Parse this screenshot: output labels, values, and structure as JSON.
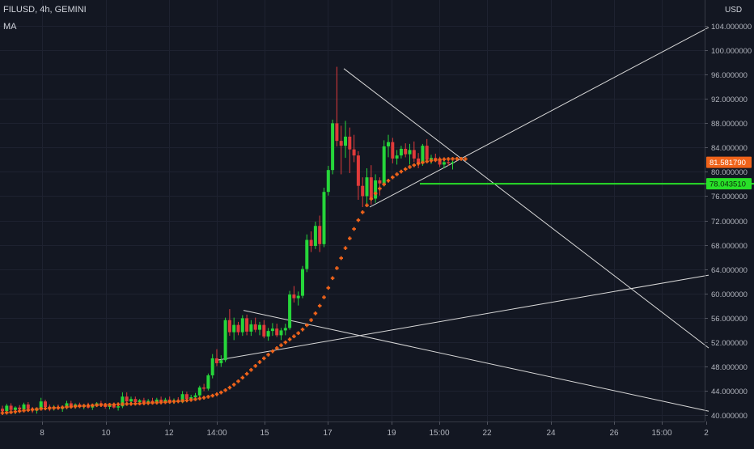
{
  "header": {
    "title": "FILUSD, 4h, GEMINI",
    "indicator": "MA"
  },
  "axis": {
    "currency": "USD"
  },
  "colors": {
    "background": "#131722",
    "up": "#26d63a",
    "down": "#e03a3a",
    "ma": "#f0631a",
    "line": "#d8d8d8",
    "current_price_bg": "#f0631a",
    "level_bg": "#28e028"
  },
  "chart_data": {
    "type": "candlestick",
    "symbol": "FILUSD",
    "interval": "4h",
    "exchange": "GEMINI",
    "y_ticks": [
      40,
      44,
      48,
      52,
      56,
      60,
      64,
      68,
      72,
      76,
      80,
      84,
      88,
      92,
      96,
      100,
      104
    ],
    "y_tick_labels": [
      "40.000000",
      "44.000000",
      "48.000000",
      "52.000000",
      "56.000000",
      "60.000000",
      "64.000000",
      "68.000000",
      "72.000000",
      "76.000000",
      "80.000000",
      "84.000000",
      "88.000000",
      "92.000000",
      "96.000000",
      "100.000000",
      "104.000000"
    ],
    "x_tick_labels": [
      "8",
      "10",
      "12",
      "14:00",
      "15",
      "17",
      "19",
      "15:00",
      "22",
      "24",
      "26",
      "15:00",
      "2"
    ],
    "ylim": [
      38.9,
      106.3
    ],
    "current_price": "81.581790",
    "horizontal_level": "78.043510",
    "series": [
      {
        "name": "FILUSD",
        "kind": "ohlc",
        "ohlc": [
          [
            41.0,
            41.5,
            40.2,
            40.6
          ],
          [
            40.6,
            41.8,
            40.3,
            41.5
          ],
          [
            41.5,
            41.9,
            40.5,
            40.8
          ],
          [
            40.8,
            41.4,
            40.1,
            41.2
          ],
          [
            41.2,
            41.6,
            40.6,
            40.9
          ],
          [
            40.9,
            42.0,
            40.7,
            41.7
          ],
          [
            41.7,
            42.1,
            40.8,
            41.0
          ],
          [
            41.0,
            41.3,
            40.3,
            40.7
          ],
          [
            40.7,
            41.2,
            40.2,
            41.1
          ],
          [
            41.1,
            42.8,
            40.8,
            42.2
          ],
          [
            42.2,
            42.5,
            41.0,
            41.3
          ],
          [
            41.3,
            41.7,
            40.6,
            41.1
          ],
          [
            41.1,
            41.6,
            40.7,
            41.3
          ],
          [
            41.3,
            41.7,
            40.8,
            41.0
          ],
          [
            41.0,
            41.5,
            40.5,
            41.2
          ],
          [
            41.2,
            42.3,
            40.9,
            41.9
          ],
          [
            41.9,
            42.3,
            41.1,
            41.4
          ],
          [
            41.4,
            41.9,
            41.0,
            41.7
          ],
          [
            41.7,
            42.0,
            41.1,
            41.3
          ],
          [
            41.3,
            41.8,
            40.9,
            41.6
          ],
          [
            41.6,
            42.0,
            41.0,
            41.2
          ],
          [
            41.2,
            41.7,
            40.8,
            41.5
          ],
          [
            41.5,
            42.1,
            41.3,
            41.9
          ],
          [
            41.9,
            42.3,
            41.3,
            41.6
          ],
          [
            41.6,
            41.9,
            41.0,
            41.3
          ],
          [
            41.3,
            41.8,
            40.9,
            41.6
          ],
          [
            41.6,
            42.0,
            41.0,
            41.2
          ],
          [
            41.2,
            41.6,
            40.7,
            41.4
          ],
          [
            41.4,
            43.7,
            41.1,
            43.0
          ],
          [
            43.0,
            43.7,
            41.9,
            42.2
          ],
          [
            42.2,
            43.0,
            41.8,
            42.6
          ],
          [
            42.6,
            43.0,
            41.8,
            42.1
          ],
          [
            42.1,
            42.6,
            41.6,
            42.4
          ],
          [
            42.4,
            42.8,
            41.8,
            42.0
          ],
          [
            42.0,
            42.6,
            41.6,
            42.3
          ],
          [
            42.3,
            42.8,
            41.7,
            42.0
          ],
          [
            42.0,
            42.8,
            41.7,
            42.5
          ],
          [
            42.5,
            43.0,
            41.9,
            42.1
          ],
          [
            42.1,
            42.8,
            41.9,
            42.5
          ],
          [
            42.5,
            43.0,
            42.0,
            42.2
          ],
          [
            42.2,
            42.7,
            41.8,
            42.4
          ],
          [
            42.4,
            42.9,
            41.9,
            42.1
          ],
          [
            42.1,
            43.9,
            41.9,
            43.4
          ],
          [
            43.4,
            43.8,
            42.3,
            42.6
          ],
          [
            42.6,
            43.3,
            42.2,
            42.9
          ],
          [
            42.9,
            43.6,
            42.6,
            43.2
          ],
          [
            43.2,
            44.8,
            42.9,
            44.5
          ],
          [
            44.5,
            45.1,
            43.9,
            44.3
          ],
          [
            44.3,
            46.8,
            44.0,
            46.5
          ],
          [
            46.5,
            50.0,
            46.0,
            49.3
          ],
          [
            49.3,
            50.8,
            48.0,
            48.5
          ],
          [
            48.5,
            49.8,
            47.9,
            49.0
          ],
          [
            49.0,
            56.0,
            48.7,
            55.6
          ],
          [
            55.6,
            57.4,
            53.0,
            53.6
          ],
          [
            53.6,
            56.0,
            52.3,
            54.8
          ],
          [
            54.8,
            55.3,
            53.1,
            53.6
          ],
          [
            53.6,
            56.4,
            53.0,
            55.9
          ],
          [
            55.9,
            56.5,
            53.1,
            53.7
          ],
          [
            53.7,
            55.6,
            53.0,
            54.9
          ],
          [
            54.9,
            56.0,
            53.6,
            54.0
          ],
          [
            54.0,
            55.3,
            53.1,
            54.8
          ],
          [
            54.8,
            55.6,
            52.6,
            52.9
          ],
          [
            52.9,
            54.3,
            52.2,
            53.8
          ],
          [
            53.8,
            55.1,
            53.0,
            54.2
          ],
          [
            54.2,
            55.0,
            52.8,
            53.1
          ],
          [
            53.1,
            54.3,
            52.3,
            53.9
          ],
          [
            53.9,
            55.0,
            53.1,
            54.3
          ],
          [
            54.3,
            60.4,
            54.0,
            59.8
          ],
          [
            59.8,
            61.2,
            58.5,
            59.2
          ],
          [
            59.2,
            60.3,
            58.0,
            59.6
          ],
          [
            59.6,
            64.5,
            59.2,
            64.0
          ],
          [
            64.0,
            69.7,
            63.5,
            68.8
          ],
          [
            68.8,
            70.2,
            66.8,
            67.8
          ],
          [
            67.8,
            71.8,
            67.3,
            71.1
          ],
          [
            71.1,
            72.8,
            66.8,
            68.1
          ],
          [
            68.1,
            77.4,
            67.6,
            76.7
          ],
          [
            76.7,
            81.0,
            76.1,
            80.3
          ],
          [
            80.3,
            88.6,
            79.6,
            88.0
          ],
          [
            88.0,
            97.3,
            84.2,
            85.1
          ],
          [
            85.1,
            87.6,
            79.6,
            84.3
          ],
          [
            84.3,
            88.4,
            82.3,
            85.8
          ],
          [
            85.8,
            87.3,
            79.8,
            83.7
          ],
          [
            83.7,
            86.1,
            81.6,
            82.7
          ],
          [
            82.7,
            83.4,
            75.4,
            77.7
          ],
          [
            77.7,
            79.1,
            74.2,
            76.0
          ],
          [
            76.0,
            80.6,
            74.8,
            79.1
          ],
          [
            79.1,
            81.1,
            74.6,
            75.6
          ],
          [
            75.6,
            79.6,
            74.9,
            78.6
          ],
          [
            78.6,
            79.1,
            76.1,
            78.1
          ],
          [
            78.1,
            85.2,
            77.6,
            84.2
          ],
          [
            84.2,
            86.1,
            82.4,
            84.9
          ],
          [
            84.9,
            85.6,
            81.4,
            82.2
          ],
          [
            82.2,
            83.6,
            81.2,
            82.7
          ],
          [
            82.7,
            84.3,
            82.2,
            83.8
          ],
          [
            83.8,
            84.7,
            82.4,
            82.9
          ],
          [
            82.9,
            84.6,
            81.2,
            83.6
          ],
          [
            83.6,
            85.0,
            81.6,
            82.2
          ],
          [
            82.2,
            83.1,
            80.6,
            81.4
          ],
          [
            81.4,
            84.6,
            81.0,
            84.3
          ],
          [
            84.3,
            85.4,
            81.6,
            82.0
          ],
          [
            82.0,
            82.8,
            81.3,
            82.3
          ],
          [
            82.3,
            83.0,
            81.6,
            82.0
          ],
          [
            82.0,
            82.5,
            80.8,
            81.2
          ],
          [
            81.2,
            82.3,
            80.6,
            81.6
          ],
          [
            81.6,
            82.1,
            81.0,
            81.4
          ],
          [
            81.4,
            81.8,
            80.4,
            81.58
          ]
        ]
      },
      {
        "name": "MA",
        "kind": "ma",
        "x_start": 0,
        "values": [
          40.3,
          40.35,
          40.43,
          40.52,
          40.61,
          40.7,
          40.78,
          40.86,
          40.93,
          41.0,
          41.05,
          41.09,
          41.13,
          41.17,
          41.22,
          41.28,
          41.33,
          41.38,
          41.43,
          41.47,
          41.51,
          41.55,
          41.59,
          41.62,
          41.64,
          41.66,
          41.69,
          41.73,
          41.76,
          41.79,
          41.81,
          41.83,
          41.86,
          41.9,
          41.94,
          41.98,
          42.01,
          42.04,
          42.08,
          42.13,
          42.18,
          42.24,
          42.3,
          42.37,
          42.46,
          42.57,
          42.69,
          42.82,
          42.97,
          43.15,
          43.38,
          43.68,
          44.05,
          44.48,
          44.97,
          45.52,
          46.12,
          46.75,
          47.4,
          48.05,
          48.69,
          49.3,
          49.9,
          50.46,
          50.98,
          51.46,
          51.93,
          52.42,
          52.92,
          53.45,
          54.05,
          54.75,
          55.6,
          56.7,
          57.95,
          59.35,
          60.9,
          62.5,
          64.15,
          65.8,
          67.45,
          69.05,
          70.6,
          72.05,
          73.35,
          74.5,
          75.55,
          76.45,
          77.25,
          77.95,
          78.55,
          79.1,
          79.6,
          80.05,
          80.45,
          80.8,
          81.1,
          81.35,
          81.55,
          81.72,
          81.85,
          81.95,
          82.02,
          82.08,
          82.12,
          82.14,
          82.15,
          82.14,
          82.12
        ]
      }
    ],
    "annotations": [
      {
        "type": "trendline",
        "from": [
          7.5,
          97.0
        ],
        "to": [
          37.0,
          51.0
        ]
      },
      {
        "type": "trendline",
        "from": [
          -24.5,
          57.2
        ],
        "to": [
          37.0,
          40.6
        ]
      },
      {
        "type": "trendline",
        "from": [
          -27.8,
          49.0
        ],
        "to": [
          37.0,
          63.0
        ]
      },
      {
        "type": "trendline",
        "from": [
          -5.2,
          74.2
        ],
        "to": [
          37.0,
          103.8
        ]
      },
      {
        "type": "horizontal_level",
        "from": [
          0.4,
          78.04
        ],
        "to": [
          37.0,
          78.04
        ]
      }
    ]
  }
}
